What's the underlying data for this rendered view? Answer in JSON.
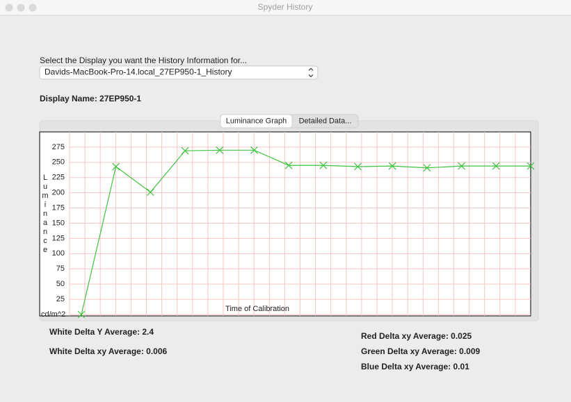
{
  "window": {
    "title": "Spyder History"
  },
  "prompt": "Select the Display you want the History Information for...",
  "dropdown": {
    "selected": "Davids-MacBook-Pro-14.local_27EP950-1_History"
  },
  "display_name": "Display Name: 27EP950-1",
  "tabs": [
    "Luminance Graph",
    "Detailed Data..."
  ],
  "chart_data": {
    "type": "line",
    "y_label": "Luminance",
    "x_label": "Time of Calibration",
    "categories": [
      null,
      null,
      null,
      null,
      null,
      null,
      null,
      null,
      null,
      null,
      null,
      null,
      null,
      null
    ],
    "series": [
      {
        "color": "#3fc23f",
        "values": [
          0,
          243,
          201,
          269,
          270,
          270,
          245,
          245,
          243,
          244,
          241,
          244,
          244,
          244
        ]
      }
    ],
    "ylim": [
      0,
      300
    ],
    "yticks": [
      {
        "value": 0,
        "label": "cd/m^2"
      },
      25,
      50,
      75,
      100,
      125,
      150,
      175,
      200,
      225,
      250,
      275
    ],
    "grid": true,
    "grid_color": "#f5c6c6"
  },
  "stats": {
    "white_delta_y": "White Delta Y Average: 2.4",
    "white_delta_xy": "White Delta xy Average: 0.006",
    "red_delta_xy": "Red Delta xy Average: 0.025",
    "green_delta_xy": "Green Delta xy Average: 0.009",
    "blue_delta_xy": "Blue Delta xy Average: 0.01"
  }
}
